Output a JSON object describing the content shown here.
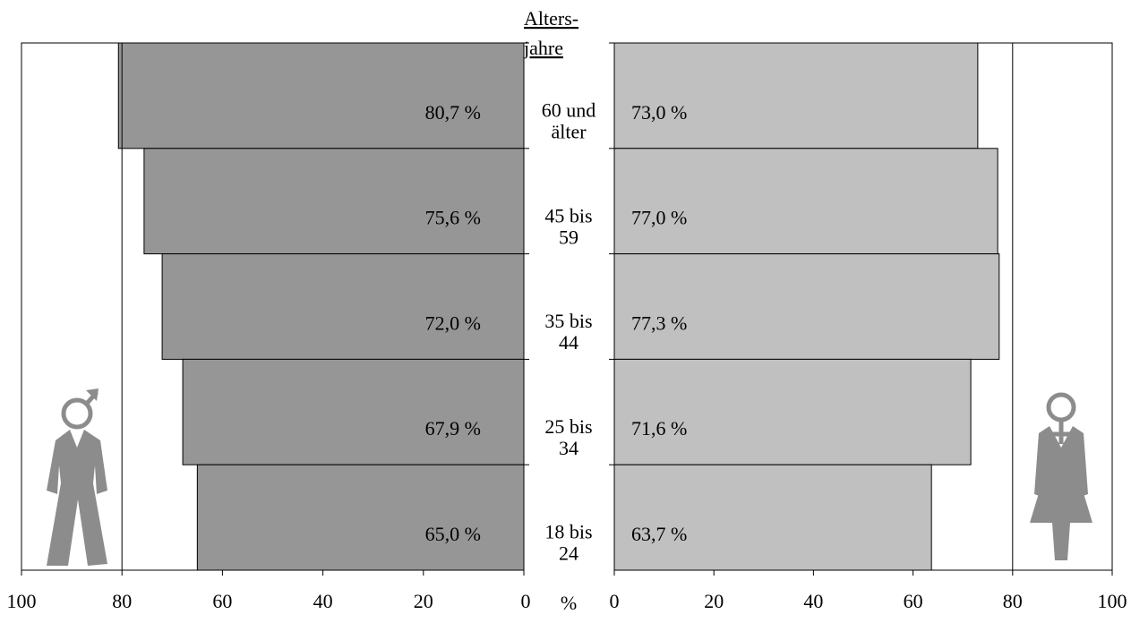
{
  "chart_data": {
    "type": "bar",
    "orientation": "horizontal-butterfly",
    "y_title": "Alters-\njahre",
    "x_unit": "%",
    "categories": [
      "60 und älter",
      "45 bis 59",
      "35 bis 44",
      "25 bis 34",
      "18 bis 24"
    ],
    "category_lines": [
      [
        "60  und",
        "älter"
      ],
      [
        "45 bis",
        "59"
      ],
      [
        "35 bis",
        "44"
      ],
      [
        "25 bis",
        "34"
      ],
      [
        "18    bis",
        "24"
      ]
    ],
    "series": [
      {
        "side": "left",
        "values": [
          80.7,
          75.6,
          72.0,
          67.9,
          65.0
        ],
        "labels": [
          "80,7 %",
          "75,6 %",
          "72,0 %",
          "67,9 %",
          "65,0 %"
        ],
        "color": "#969696"
      },
      {
        "side": "right",
        "values": [
          73.0,
          77.0,
          77.3,
          71.6,
          63.7
        ],
        "labels": [
          "73,0 %",
          "77,0 %",
          "77,3 %",
          "71,6 %",
          "63,7 %"
        ],
        "color": "#c0c0c0"
      }
    ],
    "xlim": [
      0,
      100
    ],
    "ticks": [
      0,
      20,
      40,
      60,
      80,
      100
    ],
    "reference_line": 80,
    "grid": false,
    "legend": "none",
    "icons": {
      "left": "male-figure-icon",
      "right": "female-figure-icon",
      "color": "#8c8c8c"
    }
  }
}
